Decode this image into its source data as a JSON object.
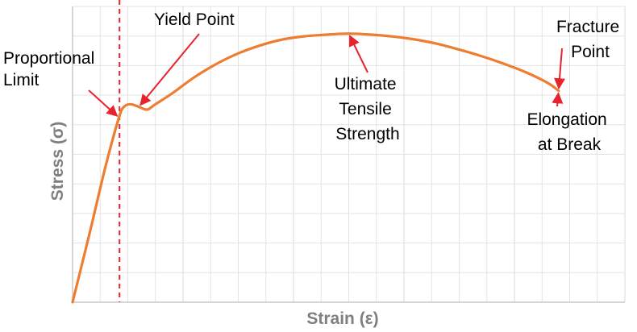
{
  "chart_data": {
    "type": "line",
    "title": "",
    "xlabel": "Strain (ε)",
    "ylabel": "Stress (σ)",
    "xlim": [
      0,
      100
    ],
    "ylim": [
      0,
      100
    ],
    "grid": true,
    "x_tick_labels": false,
    "y_tick_labels": false,
    "series": [
      {
        "color": "#ED7D31",
        "x": [
          0,
          3,
          6,
          8.4,
          9.3,
          10.5,
          12,
          13.5,
          15,
          18,
          22,
          26,
          30,
          34,
          38,
          42,
          46,
          50,
          54,
          58,
          62,
          66,
          70,
          74,
          78,
          82,
          86,
          88
        ],
        "y": [
          0,
          25,
          51,
          69,
          73,
          74,
          73,
          72,
          74,
          78,
          84,
          89,
          93,
          96,
          98.2,
          99.4,
          100,
          100.4,
          100,
          99.3,
          98.2,
          96.6,
          94.4,
          92,
          89.2,
          86,
          82,
          79
        ]
      }
    ],
    "reference_line": {
      "x": 8.5,
      "style": "dashed",
      "color": "#E8232D"
    },
    "annotations": [
      {
        "text": [
          "Proportional",
          "Limit"
        ],
        "x": 8.4,
        "y": 69
      },
      {
        "text": [
          "Yield Point"
        ],
        "x": 12,
        "y": 73
      },
      {
        "text": [
          "Ultimate",
          "Tensile",
          "Strength"
        ],
        "x": 50,
        "y": 100.4
      },
      {
        "text": [
          "Fracture",
          "Point"
        ],
        "x": 88,
        "y": 79
      },
      {
        "text": [
          "Elongation",
          "at Break"
        ],
        "x": 88,
        "y": 79
      }
    ]
  },
  "colors": {
    "curve": "#ED7D31",
    "arrows": "#E8232D",
    "grid": "#E3E3E3",
    "axis": "#C9C9C9",
    "axis_title": "#7F7F7F"
  }
}
